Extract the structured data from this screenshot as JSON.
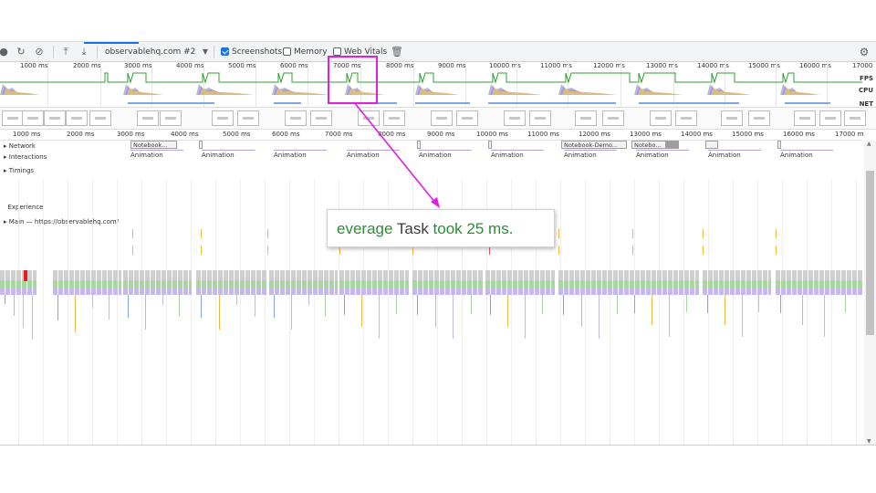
{
  "toolbar": {
    "profile_select": "observablehq.com #2",
    "screenshots_label": "Screenshots",
    "screenshots_checked": true,
    "memory_label": "Memory",
    "web_vitals_label": "Web Vitals",
    "icons": [
      "record-icon",
      "reload-icon",
      "clear-icon",
      "upload-icon",
      "download-icon",
      "dropdown-caret-icon",
      "trash-icon",
      "gear-icon"
    ]
  },
  "overview": {
    "ticks": [
      "1000 ms",
      "2000 ms",
      "3000 ms",
      "4000 ms",
      "5000 ms",
      "6000 ms",
      "7000 ms",
      "8000 ms",
      "9000 ms",
      "10000 ms",
      "11000 ms",
      "12000 ms",
      "13000 ms",
      "14000 ms",
      "15000 ms",
      "16000 ms",
      "17000"
    ],
    "fps_label": "FPS",
    "cpu_label": "CPU",
    "net_label": "NET"
  },
  "ruler": {
    "ticks": [
      "1000 ms",
      "2000 ms",
      "3000 ms",
      "4000 ms",
      "5000 ms",
      "6000 ms",
      "7000 ms",
      "8000 ms",
      "9000 ms",
      "10000 ms",
      "11000 ms",
      "12000 ms",
      "13000 ms",
      "14000 ms",
      "15000 ms",
      "16000 ms",
      "17000 m"
    ]
  },
  "tracks": {
    "network": "Network",
    "interactions": "Interactions",
    "timings": "Timings",
    "experience": "Experience",
    "main": "Main — https://observablehq.com/"
  },
  "network_items": [
    "Notebook...",
    "Notebook-Demo...",
    "Notebo..."
  ],
  "animation_label": "Animation",
  "callout": {
    "part1": "everage ",
    "part2": "Task ",
    "part3": "took 25 ms."
  },
  "colors": {
    "highlight": "#e21de0",
    "callout_green": "#2e8b3a",
    "fps": "#2ca02c",
    "cpu_script": "#e8c766",
    "cpu_render": "#a98ee8",
    "cpu_idle": "#9aa5c5",
    "main_task": "#cfcfcf",
    "main_green": "#a8d5a0",
    "main_purple": "#c5b8ef"
  }
}
